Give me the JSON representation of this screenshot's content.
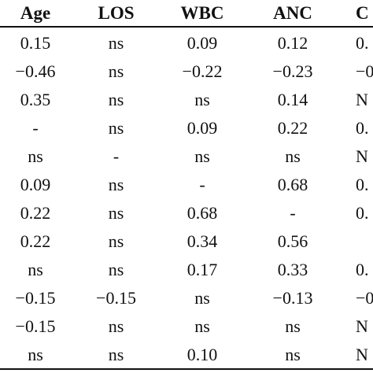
{
  "table": {
    "headers": [
      "Age",
      "LOS",
      "WBC",
      "ANC",
      "C"
    ],
    "rows": [
      [
        "0.15",
        "ns",
        "0.09",
        "0.12",
        "0."
      ],
      [
        "−0.46",
        "ns",
        "−0.22",
        "−0.23",
        "−0"
      ],
      [
        "0.35",
        "ns",
        "ns",
        "0.14",
        "N"
      ],
      [
        "-",
        "ns",
        "0.09",
        "0.22",
        "0."
      ],
      [
        "ns",
        "-",
        "ns",
        "ns",
        "N"
      ],
      [
        "0.09",
        "ns",
        "-",
        "0.68",
        "0."
      ],
      [
        "0.22",
        "ns",
        "0.68",
        "-",
        "0."
      ],
      [
        "0.22",
        "ns",
        "0.34",
        "0.56",
        ""
      ],
      [
        "ns",
        "ns",
        "0.17",
        "0.33",
        "0."
      ],
      [
        "−0.15",
        "−0.15",
        "ns",
        "−0.13",
        "−0"
      ],
      [
        "−0.15",
        "ns",
        "ns",
        "ns",
        "N"
      ],
      [
        "ns",
        "ns",
        "0.10",
        "ns",
        "N"
      ]
    ]
  }
}
